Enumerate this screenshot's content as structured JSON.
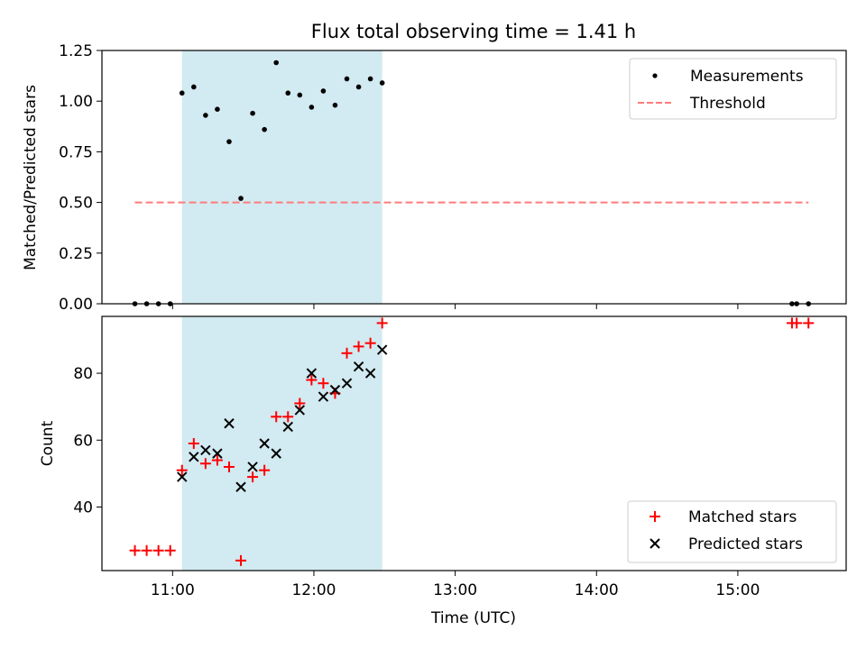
{
  "chart_data": [
    {
      "type": "scatter",
      "title": "Flux total observing time = 1.41 h",
      "xlabel": "",
      "ylabel": "Matched/Predicted stars",
      "xlim": [
        "10:30",
        "15:46"
      ],
      "ylim": [
        0,
        1.25
      ],
      "yticks": [
        0.0,
        0.25,
        0.5,
        0.75,
        1.0,
        1.25
      ],
      "ytick_labels": [
        "0.00",
        "0.25",
        "0.50",
        "0.75",
        "1.00",
        "1.25"
      ],
      "legend": "top-right",
      "highlight_span": {
        "start": "11:04",
        "end": "12:29",
        "color": "#add8e6"
      },
      "series": [
        {
          "name": "Measurements",
          "marker": "dot",
          "color": "#000000",
          "x": [
            "10:44",
            "10:49",
            "10:54",
            "10:59",
            "11:04",
            "11:09",
            "11:14",
            "11:19",
            "11:24",
            "11:29",
            "11:34",
            "11:39",
            "11:44",
            "11:49",
            "11:54",
            "11:59",
            "12:04",
            "12:09",
            "12:14",
            "12:19",
            "12:24",
            "12:29",
            "15:23",
            "15:25",
            "15:30"
          ],
          "y": [
            0,
            0,
            0,
            0,
            1.04,
            1.07,
            0.93,
            0.96,
            0.8,
            0.52,
            0.94,
            0.86,
            1.19,
            1.04,
            1.03,
            0.97,
            1.05,
            0.98,
            1.11,
            1.07,
            1.11,
            1.09,
            0,
            0,
            0
          ]
        },
        {
          "name": "Threshold",
          "style": "dashed-line",
          "color": "#ff7b7b",
          "x": [
            "10:44",
            "15:30"
          ],
          "y": [
            0.5,
            0.5
          ]
        }
      ]
    },
    {
      "type": "scatter",
      "title": "",
      "xlabel": "Time (UTC)",
      "ylabel": "Count",
      "xlim": [
        "10:30",
        "15:46"
      ],
      "ylim": [
        21,
        97
      ],
      "yticks": [
        40,
        60,
        80
      ],
      "ytick_labels": [
        "40",
        "60",
        "80"
      ],
      "xticks": [
        "11:00",
        "12:00",
        "13:00",
        "14:00",
        "15:00"
      ],
      "xtick_labels": [
        "11:00",
        "12:00",
        "13:00",
        "14:00",
        "15:00"
      ],
      "legend": "bottom-right",
      "highlight_span": {
        "start": "11:04",
        "end": "12:29",
        "color": "#add8e6"
      },
      "series": [
        {
          "name": "Matched stars",
          "marker": "plus",
          "color": "#ff0000",
          "x": [
            "10:44",
            "10:49",
            "10:54",
            "10:59",
            "11:04",
            "11:09",
            "11:14",
            "11:19",
            "11:24",
            "11:29",
            "11:34",
            "11:39",
            "11:44",
            "11:49",
            "11:54",
            "11:59",
            "12:04",
            "12:09",
            "12:14",
            "12:19",
            "12:24",
            "12:29",
            "15:23",
            "15:25",
            "15:30"
          ],
          "y": [
            27,
            27,
            27,
            27,
            51,
            59,
            53,
            54,
            52,
            24,
            49,
            51,
            67,
            67,
            71,
            78,
            77,
            74,
            86,
            88,
            89,
            95,
            95,
            95,
            95
          ]
        },
        {
          "name": "Predicted stars",
          "marker": "x",
          "color": "#000000",
          "x": [
            "11:04",
            "11:09",
            "11:14",
            "11:19",
            "11:24",
            "11:29",
            "11:34",
            "11:39",
            "11:44",
            "11:49",
            "11:54",
            "11:59",
            "12:04",
            "12:09",
            "12:14",
            "12:19",
            "12:24",
            "12:29"
          ],
          "y": [
            49,
            55,
            57,
            56,
            65,
            46,
            52,
            59,
            56,
            64,
            69,
            80,
            73,
            75,
            77,
            82,
            80,
            87
          ]
        }
      ]
    }
  ]
}
